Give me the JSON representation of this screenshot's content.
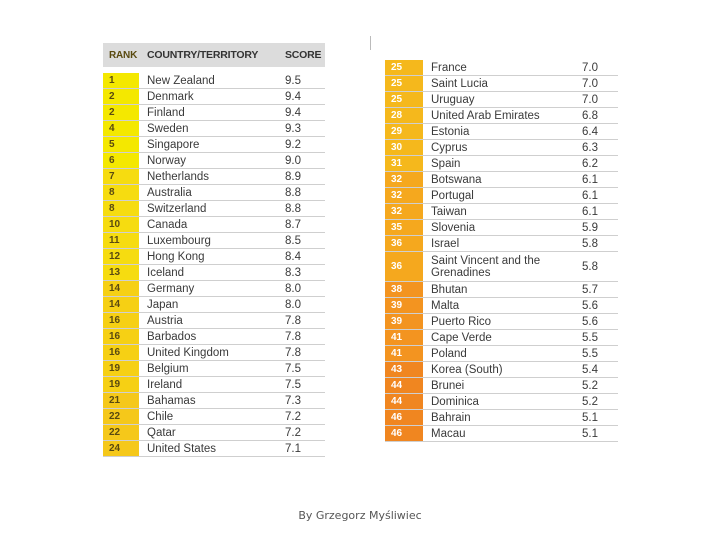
{
  "header": {
    "rank": "RANK",
    "country": "COUNTRY/TERRITORY",
    "score": "SCORE"
  },
  "colors": {
    "yellow": "#f2e600",
    "yellow_orange": "#f5c518",
    "orange": "#f39a1c",
    "deep_orange": "#ee7d1a"
  },
  "left_rows": [
    {
      "rank": "1",
      "country": "New Zealand",
      "score": "9.5",
      "color": "#f4e800"
    },
    {
      "rank": "2",
      "country": "Denmark",
      "score": "9.4",
      "color": "#f4e800"
    },
    {
      "rank": "2",
      "country": "Finland",
      "score": "9.4",
      "color": "#f4e800"
    },
    {
      "rank": "4",
      "country": "Sweden",
      "score": "9.3",
      "color": "#f4e800"
    },
    {
      "rank": "5",
      "country": "Singapore",
      "score": "9.2",
      "color": "#f4e800"
    },
    {
      "rank": "6",
      "country": "Norway",
      "score": "9.0",
      "color": "#f4e800"
    },
    {
      "rank": "7",
      "country": "Netherlands",
      "score": "8.9",
      "color": "#f6dc10"
    },
    {
      "rank": "8",
      "country": "Australia",
      "score": "8.8",
      "color": "#f6dc10"
    },
    {
      "rank": "8",
      "country": "Switzerland",
      "score": "8.8",
      "color": "#f6dc10"
    },
    {
      "rank": "10",
      "country": "Canada",
      "score": "8.7",
      "color": "#f6dc10"
    },
    {
      "rank": "11",
      "country": "Luxembourg",
      "score": "8.5",
      "color": "#f6dc10"
    },
    {
      "rank": "12",
      "country": "Hong Kong",
      "score": "8.4",
      "color": "#f6dc10"
    },
    {
      "rank": "13",
      "country": "Iceland",
      "score": "8.3",
      "color": "#f6dc10"
    },
    {
      "rank": "14",
      "country": "Germany",
      "score": "8.0",
      "color": "#f6d014"
    },
    {
      "rank": "14",
      "country": "Japan",
      "score": "8.0",
      "color": "#f6d014"
    },
    {
      "rank": "16",
      "country": "Austria",
      "score": "7.8",
      "color": "#f6d014"
    },
    {
      "rank": "16",
      "country": "Barbados",
      "score": "7.8",
      "color": "#f6d014"
    },
    {
      "rank": "16",
      "country": "United Kingdom",
      "score": "7.8",
      "color": "#f6d014"
    },
    {
      "rank": "19",
      "country": "Belgium",
      "score": "7.5",
      "color": "#f6d014"
    },
    {
      "rank": "19",
      "country": "Ireland",
      "score": "7.5",
      "color": "#f6d014"
    },
    {
      "rank": "21",
      "country": "Bahamas",
      "score": "7.3",
      "color": "#f5c81a"
    },
    {
      "rank": "22",
      "country": "Chile",
      "score": "7.2",
      "color": "#f5c81a"
    },
    {
      "rank": "22",
      "country": "Qatar",
      "score": "7.2",
      "color": "#f5c81a"
    },
    {
      "rank": "24",
      "country": "United States",
      "score": "7.1",
      "color": "#f5c81a"
    }
  ],
  "right_rows": [
    {
      "rank": "25",
      "country": "France",
      "score": "7.0",
      "color": "#f5b81c",
      "tall": false
    },
    {
      "rank": "25",
      "country": "Saint Lucia",
      "score": "7.0",
      "color": "#f5b81c",
      "tall": false
    },
    {
      "rank": "25",
      "country": "Uruguay",
      "score": "7.0",
      "color": "#f5b81c",
      "tall": false
    },
    {
      "rank": "28",
      "country": "United Arab Emirates",
      "score": "6.8",
      "color": "#f5b81c",
      "tall": false
    },
    {
      "rank": "29",
      "country": "Estonia",
      "score": "6.4",
      "color": "#f5b81c",
      "tall": false
    },
    {
      "rank": "30",
      "country": "Cyprus",
      "score": "6.3",
      "color": "#f5b81c",
      "tall": false
    },
    {
      "rank": "31",
      "country": "Spain",
      "score": "6.2",
      "color": "#f5b81c",
      "tall": false
    },
    {
      "rank": "32",
      "country": "Botswana",
      "score": "6.1",
      "color": "#f5a81e",
      "tall": false
    },
    {
      "rank": "32",
      "country": "Portugal",
      "score": "6.1",
      "color": "#f5a81e",
      "tall": false
    },
    {
      "rank": "32",
      "country": "Taiwan",
      "score": "6.1",
      "color": "#f5a81e",
      "tall": false
    },
    {
      "rank": "35",
      "country": "Slovenia",
      "score": "5.9",
      "color": "#f5a81e",
      "tall": false
    },
    {
      "rank": "36",
      "country": "Israel",
      "score": "5.8",
      "color": "#f5a81e",
      "tall": false
    },
    {
      "rank": "36",
      "country": "Saint Vincent and the Grenadines",
      "score": "5.8",
      "color": "#f5a81e",
      "tall": true
    },
    {
      "rank": "38",
      "country": "Bhutan",
      "score": "5.7",
      "color": "#f39420",
      "tall": false
    },
    {
      "rank": "39",
      "country": "Malta",
      "score": "5.6",
      "color": "#f39420",
      "tall": false
    },
    {
      "rank": "39",
      "country": "Puerto Rico",
      "score": "5.6",
      "color": "#f39420",
      "tall": false
    },
    {
      "rank": "41",
      "country": "Cape Verde",
      "score": "5.5",
      "color": "#f39420",
      "tall": false
    },
    {
      "rank": "41",
      "country": "Poland",
      "score": "5.5",
      "color": "#f39420",
      "tall": false
    },
    {
      "rank": "43",
      "country": "Korea (South)",
      "score": "5.4",
      "color": "#f08620",
      "tall": false
    },
    {
      "rank": "44",
      "country": "Brunei",
      "score": "5.2",
      "color": "#f08620",
      "tall": false
    },
    {
      "rank": "44",
      "country": "Dominica",
      "score": "5.2",
      "color": "#f08620",
      "tall": false
    },
    {
      "rank": "46",
      "country": "Bahrain",
      "score": "5.1",
      "color": "#f08620",
      "tall": false
    },
    {
      "rank": "46",
      "country": "Macau",
      "score": "5.1",
      "color": "#f08620",
      "tall": false
    }
  ],
  "footer": {
    "credit": "By Grzegorz Myśliwiec"
  }
}
